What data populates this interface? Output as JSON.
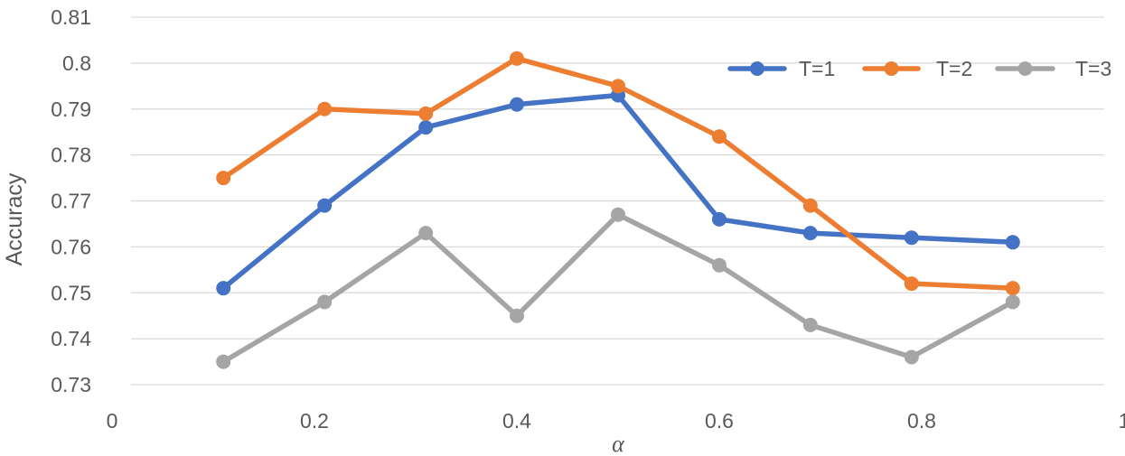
{
  "chart_data": {
    "type": "line",
    "xlabel": "α",
    "ylabel": "Accuracy",
    "xlim": [
      0,
      1
    ],
    "ylim": [
      0.73,
      0.81
    ],
    "x_ticks": [
      "0",
      "0.2",
      "0.4",
      "0.6",
      "0.8",
      "1"
    ],
    "y_ticks": [
      "0.81",
      "0.8",
      "0.79",
      "0.78",
      "0.77",
      "0.76",
      "0.75",
      "0.74",
      "0.73"
    ],
    "grid": true,
    "legend_position": "top-right",
    "x": [
      0.11,
      0.21,
      0.31,
      0.4,
      0.5,
      0.6,
      0.69,
      0.79,
      0.89
    ],
    "series": [
      {
        "name": "T=1",
        "color": "#4472C4",
        "values": [
          0.751,
          0.769,
          0.786,
          0.791,
          0.793,
          0.766,
          0.763,
          0.762,
          0.761
        ]
      },
      {
        "name": "T=2",
        "color": "#ED7D31",
        "values": [
          0.775,
          0.79,
          0.789,
          0.801,
          0.795,
          0.784,
          0.769,
          0.752,
          0.751
        ]
      },
      {
        "name": "T=3",
        "color": "#A5A5A5",
        "values": [
          0.735,
          0.748,
          0.763,
          0.745,
          0.767,
          0.756,
          0.743,
          0.736,
          0.748
        ]
      }
    ]
  }
}
